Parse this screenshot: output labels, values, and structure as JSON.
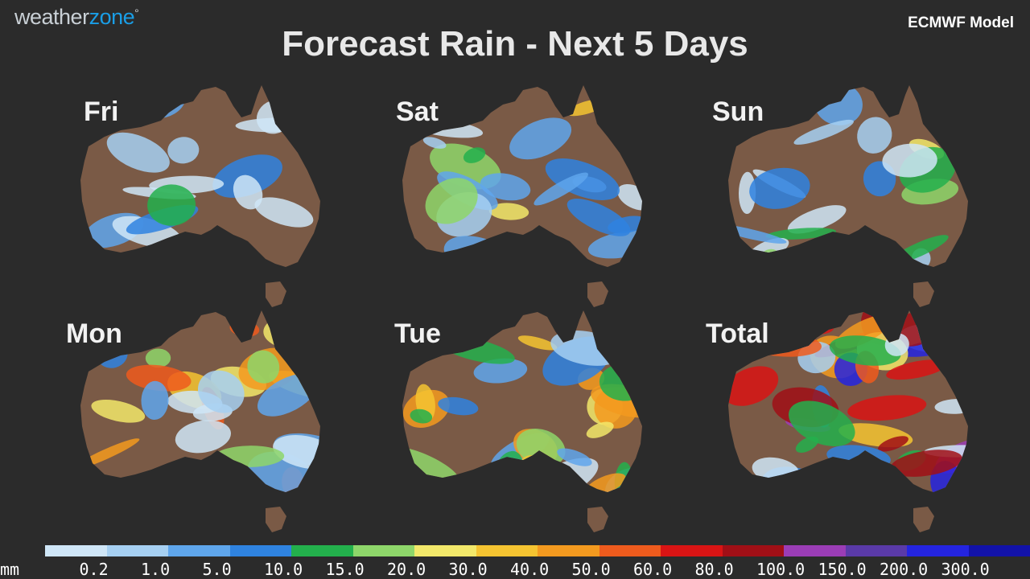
{
  "header": {
    "logo_word1": "weather",
    "logo_word2": "zone",
    "logo_mark": "°",
    "title": "Forecast Rain - Next 5 Days",
    "model": "ECMWF Model"
  },
  "panels": [
    {
      "label": "Fri",
      "intensity": 1
    },
    {
      "label": "Sat",
      "intensity": 2
    },
    {
      "label": "Sun",
      "intensity": 2
    },
    {
      "label": "Mon",
      "intensity": 3
    },
    {
      "label": "Tue",
      "intensity": 3
    },
    {
      "label": "Total",
      "intensity": 5
    }
  ],
  "legend": {
    "unit": "mm",
    "ticks": [
      "0.2",
      "1.0",
      "5.0",
      "10.0",
      "15.0",
      "20.0",
      "30.0",
      "40.0",
      "50.0",
      "60.0",
      "80.0",
      "100.0",
      "150.0",
      "200.0",
      "300.0"
    ],
    "colors": [
      "#cfe6f7",
      "#a6d0f2",
      "#5fa6ec",
      "#2f83e0",
      "#23b04c",
      "#8ed66a",
      "#f2e86a",
      "#f5c431",
      "#f39a1f",
      "#ee5b1d",
      "#d91414",
      "#a00f16",
      "#9b3db6",
      "#5a3aa8",
      "#2424e0",
      "#1212a8"
    ]
  },
  "colors": {
    "land": "#7a5a46",
    "background": "#2b2b2b",
    "accent_logo": "#1a9ee6"
  }
}
